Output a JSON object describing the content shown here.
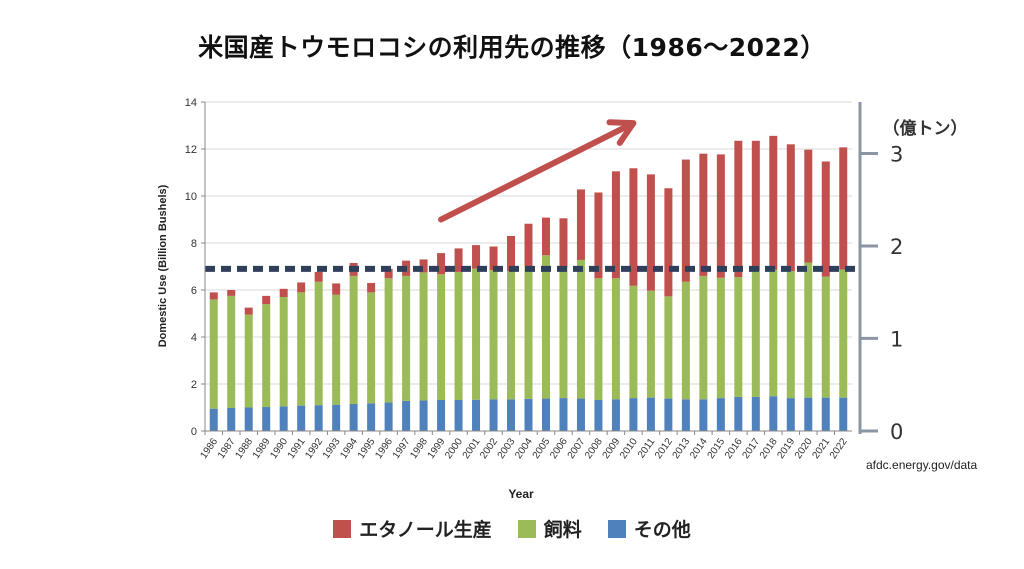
{
  "title": "米国産トウモロコシの利用先の推移（1986～2022）",
  "source": "afdc.energy.gov/data",
  "colors": {
    "ethanol": "#c0504d",
    "feed": "#9bbb59",
    "other": "#4f81bd",
    "dashed_line": "#2e3f5c",
    "arrow": "#c0504d"
  },
  "chart_data": {
    "type": "bar",
    "stacked": true,
    "xlabel": "Year",
    "ylabel": "Domestic Use (Billion Bushels)",
    "ylim": [
      0,
      14
    ],
    "yticks": [
      0,
      2,
      4,
      6,
      8,
      10,
      12,
      14
    ],
    "grid": true,
    "right_axis": {
      "label": "（億トン）",
      "ticks": [
        "0",
        "1",
        "2",
        "3"
      ],
      "tick_values": [
        0,
        3.94,
        7.87,
        11.81
      ]
    },
    "reference_line": {
      "style": "dashed",
      "y": 6.9
    },
    "trend_arrow": {
      "from": {
        "x": "1999",
        "y": 9.0
      },
      "to": {
        "x": "2010",
        "y": 13.1
      }
    },
    "legend_position": "bottom",
    "categories": [
      "1986",
      "1987",
      "1988",
      "1989",
      "1990",
      "1991",
      "1992",
      "1993",
      "1994",
      "1995",
      "1996",
      "1997",
      "1998",
      "1999",
      "2000",
      "2001",
      "2002",
      "2003",
      "2004",
      "2005",
      "2006",
      "2007",
      "2008",
      "2009",
      "2010",
      "2011",
      "2012",
      "2013",
      "2014",
      "2015",
      "2016",
      "2017",
      "2018",
      "2019",
      "2020",
      "2021",
      "2022"
    ],
    "series": [
      {
        "name": "その他",
        "key": "other",
        "values": [
          0.95,
          0.98,
          1.0,
          1.02,
          1.05,
          1.08,
          1.1,
          1.12,
          1.15,
          1.18,
          1.22,
          1.28,
          1.3,
          1.32,
          1.32,
          1.33,
          1.35,
          1.35,
          1.37,
          1.38,
          1.4,
          1.38,
          1.32,
          1.35,
          1.4,
          1.42,
          1.38,
          1.35,
          1.35,
          1.4,
          1.45,
          1.45,
          1.48,
          1.4,
          1.42,
          1.42,
          1.42
        ]
      },
      {
        "name": "飼料",
        "key": "feed",
        "values": [
          4.65,
          4.77,
          3.95,
          4.38,
          4.65,
          4.82,
          5.25,
          4.68,
          5.45,
          4.72,
          5.28,
          5.32,
          5.45,
          5.35,
          5.45,
          5.58,
          5.5,
          5.45,
          5.65,
          6.1,
          5.55,
          5.9,
          5.18,
          5.15,
          4.78,
          4.55,
          4.35,
          5.0,
          5.25,
          5.12,
          5.1,
          5.35,
          5.38,
          5.4,
          5.75,
          5.15,
          5.45
        ]
      },
      {
        "name": "エタノール生産",
        "key": "ethanol",
        "values": [
          0.3,
          0.25,
          0.3,
          0.35,
          0.35,
          0.42,
          0.42,
          0.48,
          0.55,
          0.4,
          0.4,
          0.65,
          0.55,
          0.9,
          1.0,
          1.0,
          1.0,
          1.5,
          1.8,
          1.6,
          2.1,
          3.0,
          3.65,
          4.55,
          5.0,
          4.95,
          4.6,
          5.2,
          5.2,
          5.25,
          5.8,
          5.55,
          5.7,
          5.4,
          4.8,
          4.9,
          5.2
        ]
      }
    ]
  }
}
